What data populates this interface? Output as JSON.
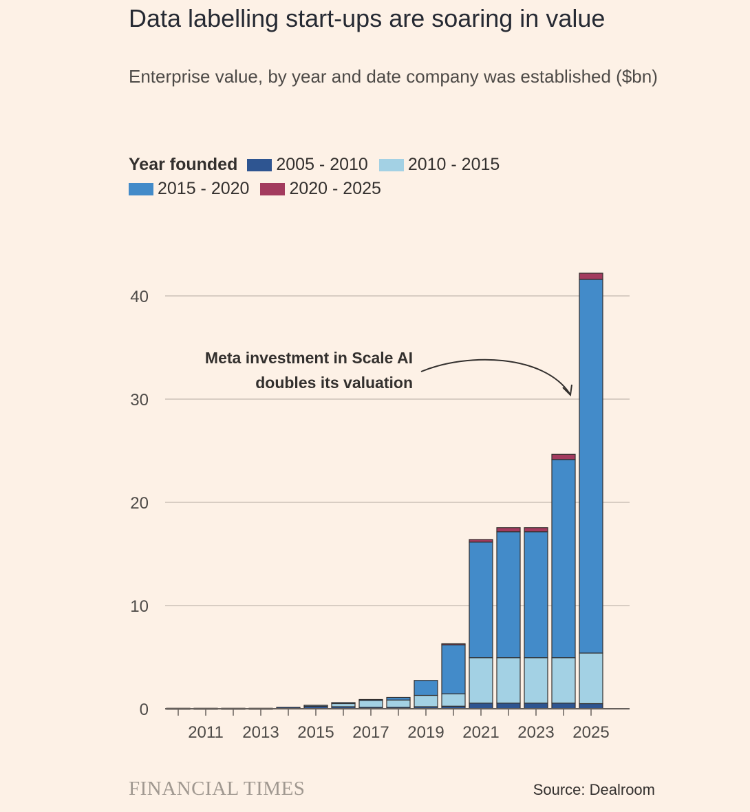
{
  "title": "Data labelling start-ups are soaring in value",
  "subtitle": "Enterprise value, by year and date company was established ($bn)",
  "legend": {
    "title": "Year founded",
    "items": [
      {
        "label": "2005 - 2010",
        "color": "#2e5591"
      },
      {
        "label": "2010 - 2015",
        "color": "#a3d1e4"
      },
      {
        "label": "2015 - 2020",
        "color": "#438bc9"
      },
      {
        "label": "2020 - 2025",
        "color": "#a33b5e"
      }
    ]
  },
  "annotation": {
    "line1": "Meta investment in Scale AI",
    "line2": "doubles its valuation"
  },
  "brand": "FINANCIAL TIMES",
  "source": "Source: Dealroom",
  "chart_data": {
    "type": "bar",
    "stacked": true,
    "categories": [
      "2010",
      "2011",
      "2012",
      "2013",
      "2014",
      "2015",
      "2016",
      "2017",
      "2018",
      "2019",
      "2020",
      "2021",
      "2022",
      "2023",
      "2024",
      "2025"
    ],
    "x_tick_labels": [
      "2011",
      "2013",
      "2015",
      "2017",
      "2019",
      "2021",
      "2023",
      "2025"
    ],
    "series": [
      {
        "name": "2005 - 2010",
        "color": "#2e5591",
        "values": [
          0.05,
          0.05,
          0.05,
          0.05,
          0.15,
          0.25,
          0.2,
          0.15,
          0.15,
          0.2,
          0.25,
          0.55,
          0.55,
          0.55,
          0.55,
          0.5
        ]
      },
      {
        "name": "2010 - 2015",
        "color": "#a3d1e4",
        "values": [
          0,
          0,
          0,
          0,
          0,
          0.1,
          0.35,
          0.65,
          0.7,
          1.1,
          1.2,
          4.4,
          4.4,
          4.4,
          4.4,
          4.9
        ]
      },
      {
        "name": "2015 - 2020",
        "color": "#438bc9",
        "values": [
          0,
          0,
          0,
          0,
          0,
          0,
          0.05,
          0.1,
          0.25,
          1.45,
          4.75,
          11.2,
          12.2,
          12.2,
          19.2,
          36.2
        ]
      },
      {
        "name": "2020 - 2025",
        "color": "#a33b5e",
        "values": [
          0,
          0,
          0,
          0,
          0,
          0,
          0,
          0,
          0,
          0,
          0.1,
          0.25,
          0.4,
          0.4,
          0.5,
          0.6
        ]
      }
    ],
    "y_ticks": [
      0,
      10,
      20,
      30,
      40
    ],
    "ylim": [
      0,
      44
    ],
    "grid": true,
    "legend_position": "top-left"
  }
}
